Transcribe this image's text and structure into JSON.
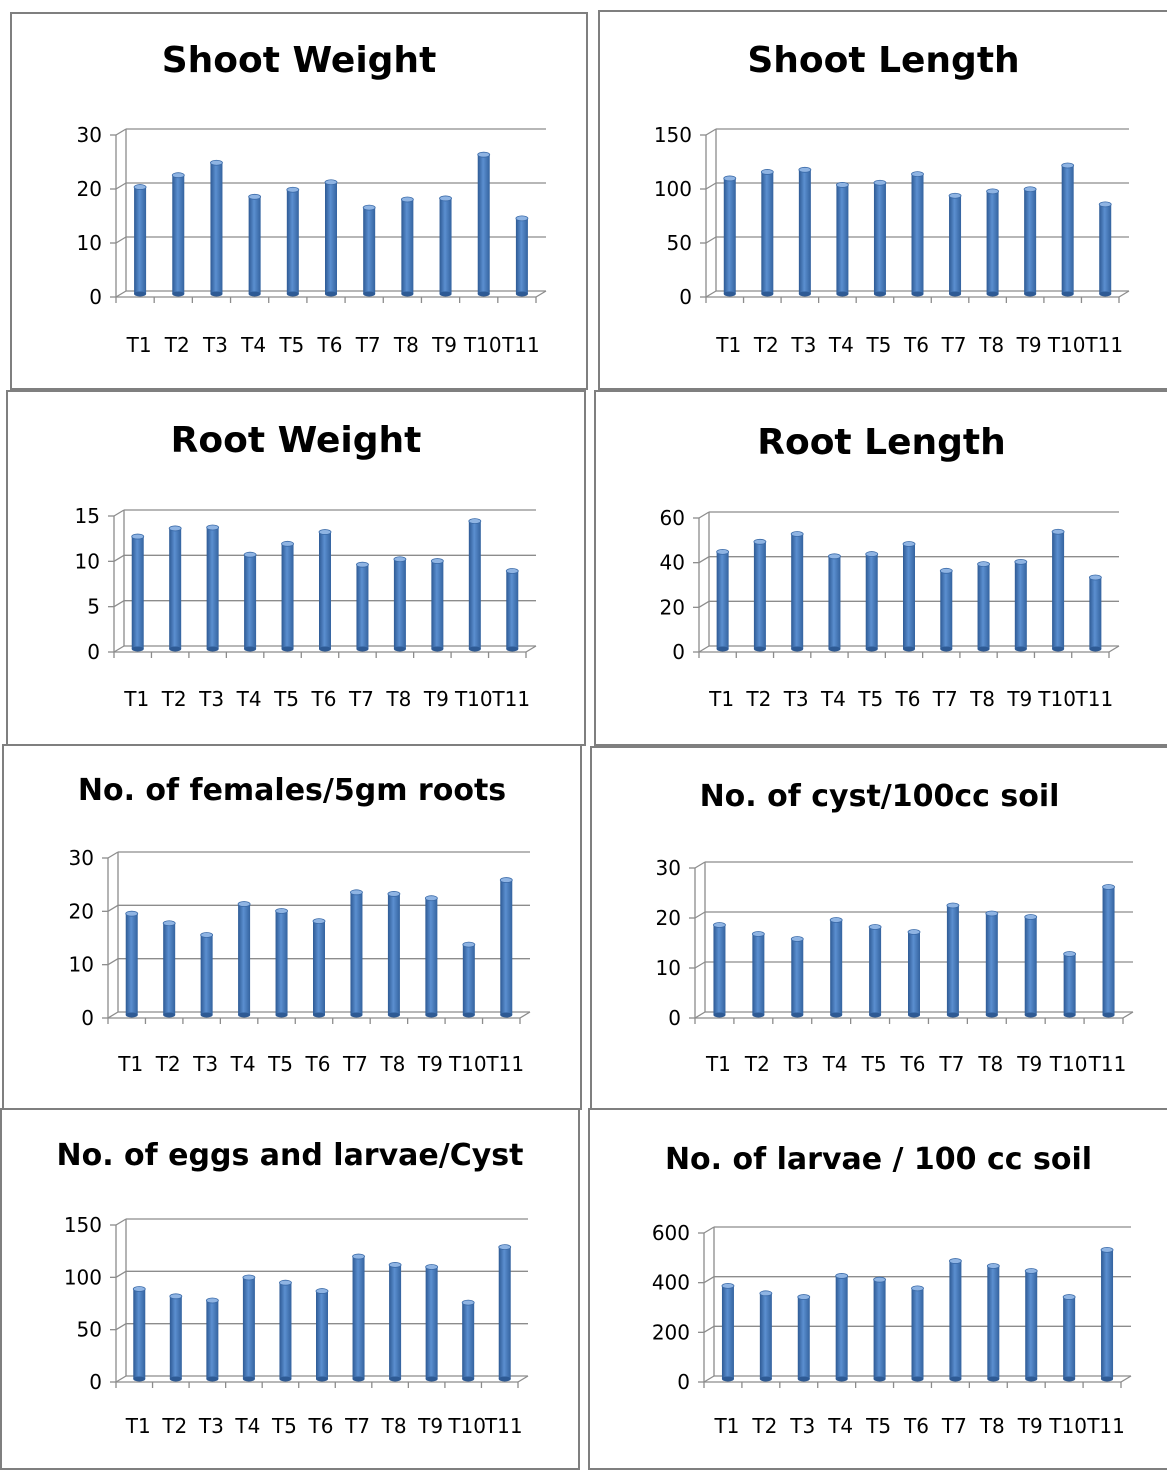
{
  "chart_data": [
    {
      "type": "bar",
      "title": "Shoot Weight",
      "categories": [
        "T1",
        "T2",
        "T3",
        "T4",
        "T5",
        "T6",
        "T7",
        "T8",
        "T9",
        "T10",
        "T11"
      ],
      "values": [
        19.8,
        22,
        24.3,
        18,
        19.3,
        20.7,
        16,
        17.5,
        17.7,
        25.8,
        14
      ],
      "ylim": [
        0,
        30
      ],
      "yticks": [
        0,
        10,
        20,
        30
      ],
      "grid": true
    },
    {
      "type": "bar",
      "title": "Shoot Length",
      "categories": [
        "T1",
        "T2",
        "T3",
        "T4",
        "T5",
        "T6",
        "T7",
        "T8",
        "T9",
        "T10",
        "T11"
      ],
      "values": [
        107,
        113,
        115,
        101,
        103,
        111,
        91,
        95,
        97,
        119,
        83
      ],
      "ylim": [
        0,
        150
      ],
      "yticks": [
        0,
        50,
        100,
        150
      ],
      "grid": true
    },
    {
      "type": "bar",
      "title": "Root Weight",
      "categories": [
        "T1",
        "T2",
        "T3",
        "T4",
        "T5",
        "T6",
        "T7",
        "T8",
        "T9",
        "T10",
        "T11"
      ],
      "values": [
        12.4,
        13.3,
        13.4,
        10.4,
        11.6,
        12.9,
        9.3,
        9.9,
        9.7,
        14.1,
        8.6
      ],
      "ylim": [
        0,
        15
      ],
      "yticks": [
        0,
        5,
        10,
        15
      ],
      "grid": true
    },
    {
      "type": "bar",
      "title": "Root Length",
      "categories": [
        "T1",
        "T2",
        "T3",
        "T4",
        "T5",
        "T6",
        "T7",
        "T8",
        "T9",
        "T10",
        "T11"
      ],
      "values": [
        43.5,
        48,
        51.5,
        41.5,
        42.5,
        47,
        35,
        38,
        39,
        52.5,
        32
      ],
      "ylim": [
        0,
        60
      ],
      "yticks": [
        0,
        20,
        40,
        60
      ],
      "grid": true
    },
    {
      "type": "bar",
      "title": "No. of females/5gm roots",
      "categories": [
        "T1",
        "T2",
        "T3",
        "T4",
        "T5",
        "T6",
        "T7",
        "T8",
        "T9",
        "T10",
        "T11"
      ],
      "values": [
        19,
        17.2,
        15,
        20.8,
        19.5,
        17.6,
        23,
        22.7,
        21.9,
        13.2,
        25.3
      ],
      "ylim": [
        0,
        30
      ],
      "yticks": [
        0,
        10,
        20,
        30
      ],
      "grid": true
    },
    {
      "type": "bar",
      "title": "No. of cyst/100cc soil",
      "categories": [
        "T1",
        "T2",
        "T3",
        "T4",
        "T5",
        "T6",
        "T7",
        "T8",
        "T9",
        "T10",
        "T11"
      ],
      "values": [
        18,
        16.2,
        15.2,
        19,
        17.6,
        16.6,
        21.9,
        20.3,
        19.6,
        12.2,
        25.6
      ],
      "ylim": [
        0,
        30
      ],
      "yticks": [
        0,
        10,
        20,
        30
      ],
      "grid": true
    },
    {
      "type": "bar",
      "title": "No. of eggs and larvae/Cyst",
      "categories": [
        "T1",
        "T2",
        "T3",
        "T4",
        "T5",
        "T6",
        "T7",
        "T8",
        "T9",
        "T10",
        "T11"
      ],
      "values": [
        86,
        79,
        75,
        97,
        92,
        84,
        117,
        109,
        107,
        73,
        126
      ],
      "ylim": [
        0,
        150
      ],
      "yticks": [
        0,
        50,
        100,
        150
      ],
      "grid": true
    },
    {
      "type": "bar",
      "title": "No. of larvae / 100 cc soil",
      "categories": [
        "T1",
        "T2",
        "T3",
        "T4",
        "T5",
        "T6",
        "T7",
        "T8",
        "T9",
        "T10",
        "T11"
      ],
      "values": [
        375,
        345,
        330,
        415,
        400,
        365,
        475,
        455,
        435,
        330,
        520
      ],
      "ylim": [
        0,
        600
      ],
      "yticks": [
        0,
        200,
        400,
        600
      ],
      "grid": true
    }
  ]
}
